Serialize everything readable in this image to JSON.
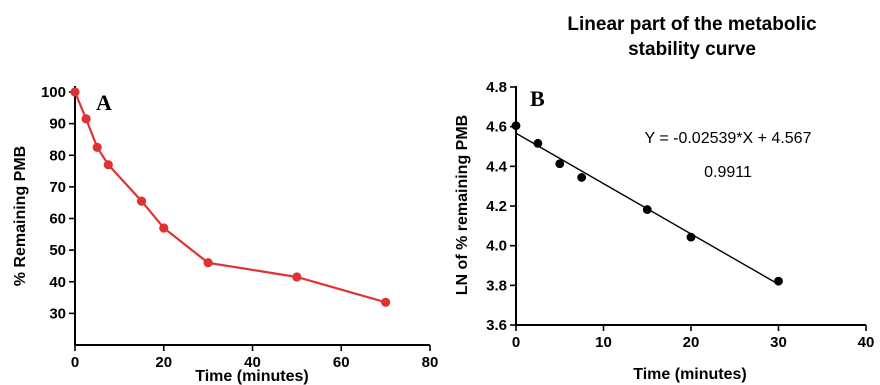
{
  "chart_data": [
    {
      "type": "line",
      "panel_label": "A",
      "title": "",
      "xlabel": "Time (minutes)",
      "ylabel": "% Remaining PMB",
      "xlim": [
        0,
        80
      ],
      "ylim": [
        20,
        100
      ],
      "xticks": [
        0,
        20,
        40,
        60,
        80
      ],
      "yticks": [
        30,
        40,
        50,
        60,
        70,
        80,
        90,
        100
      ],
      "grid": false,
      "color": "#e03232",
      "series": [
        {
          "x": [
            0,
            2.5,
            5,
            7.5,
            15,
            20,
            30,
            50,
            70
          ],
          "values": [
            100,
            91.5,
            82.5,
            77,
            65.5,
            57,
            46,
            41.5,
            33.5
          ]
        }
      ]
    },
    {
      "type": "scatter",
      "panel_label": "B",
      "title": "Linear part of the metabolic stability curve",
      "title_lines": [
        "Linear part of the metabolic",
        "stability curve"
      ],
      "xlabel": "Time (minutes)",
      "ylabel": "LN of % remaining PMB",
      "xlim": [
        0,
        40
      ],
      "ylim": [
        3.6,
        4.8
      ],
      "xticks": [
        0,
        10,
        20,
        30,
        40
      ],
      "yticks": [
        3.6,
        3.8,
        4.0,
        4.2,
        4.4,
        4.6,
        4.8
      ],
      "ytick_labels": [
        "3.6",
        "3.8",
        "4.0",
        "4.2",
        "4.4",
        "4.6",
        "4.8"
      ],
      "grid": false,
      "color": "#000000",
      "series": [
        {
          "x": [
            0,
            2.5,
            5,
            7.5,
            15,
            20,
            30
          ],
          "values": [
            4.605,
            4.516,
            4.413,
            4.344,
            4.182,
            4.043,
            3.821
          ]
        }
      ],
      "fit": {
        "slope": -0.02539,
        "intercept": 4.567,
        "x_range": [
          0,
          30
        ]
      },
      "annotations": {
        "equation": "Y = -0.02539*X + 4.567",
        "r_squared": "0.9911"
      }
    }
  ]
}
